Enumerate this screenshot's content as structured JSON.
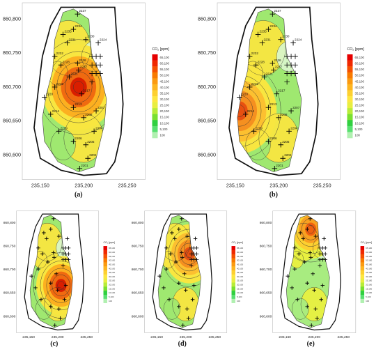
{
  "figure": {
    "panels": [
      {
        "id": "a",
        "caption": "(a)",
        "hotspot": [
          0.45,
          0.48
        ],
        "palette": "high"
      },
      {
        "id": "b",
        "caption": "(b)",
        "hotspot": [
          0.12,
          0.62
        ],
        "palette": "mid"
      },
      {
        "id": "c",
        "caption": "(c)",
        "hotspot": [
          0.55,
          0.62
        ],
        "palette": "high"
      },
      {
        "id": "d",
        "caption": "(d)",
        "hotspot": [
          0.55,
          0.35
        ],
        "palette": "mid"
      },
      {
        "id": "e",
        "caption": "(e)",
        "hotspot": [
          0.45,
          0.14
        ],
        "palette": "low"
      }
    ],
    "y_ticks": [
      "860,800",
      "860,750",
      "860,700",
      "860,650",
      "860,600"
    ],
    "x_ticks": [
      "235,150",
      "235,200",
      "235,250"
    ],
    "legend": {
      "title": "CO₂ [ppm]",
      "labels": [
        "65,100",
        "60,100",
        "55,100",
        "50,100",
        "45,100",
        "40,100",
        "35,100",
        "30,100",
        "25,100",
        "20,100",
        "15,100",
        "10,100",
        "5,100",
        "100"
      ],
      "colors": [
        "#e60000",
        "#f02800",
        "#f55000",
        "#f87a00",
        "#fb9a10",
        "#fdb520",
        "#fdd030",
        "#fde640",
        "#e8ee40",
        "#b8ec38",
        "#7ae030",
        "#30d040",
        "#58e070",
        "#b0f0b0"
      ]
    },
    "wells": [
      "2237",
      "2234",
      "2235",
      "2230",
      "2231",
      "2224",
      "2232",
      "2228",
      "2226",
      "2227",
      "2221",
      "2219",
      "2220",
      "2217",
      "2213",
      "2214",
      "2208",
      "2209",
      "2206",
      "2205",
      "2204",
      "2207",
      "2202",
      "2201"
    ]
  }
}
